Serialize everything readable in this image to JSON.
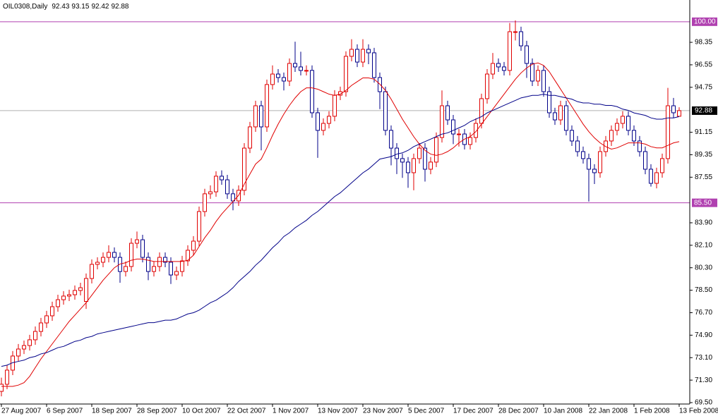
{
  "chart_data": {
    "type": "candlestick",
    "title": "OIL0308,Daily",
    "categories": [
      "27 Aug 2007",
      null,
      null,
      null,
      null,
      null,
      null,
      null,
      "6 Sep 2007",
      null,
      null,
      null,
      null,
      null,
      null,
      null,
      "18 Sep 2007",
      null,
      null,
      null,
      null,
      null,
      null,
      null,
      "28 Sep 2007",
      null,
      null,
      null,
      null,
      null,
      null,
      null,
      "10 Oct 2007",
      null,
      null,
      null,
      null,
      null,
      null,
      null,
      "22 Oct 2007",
      null,
      null,
      null,
      null,
      null,
      null,
      null,
      "1 Nov 2007",
      null,
      null,
      null,
      null,
      null,
      null,
      null,
      "13 Nov 2007",
      null,
      null,
      null,
      null,
      null,
      null,
      null,
      "23 Nov 2007",
      null,
      null,
      null,
      null,
      null,
      null,
      null,
      "5 Dec 2007",
      null,
      null,
      null,
      null,
      null,
      null,
      null,
      "17 Dec 2007",
      null,
      null,
      null,
      null,
      null,
      null,
      null,
      "28 Dec 2007",
      null,
      null,
      null,
      null,
      null,
      null,
      null,
      "10 Jan 2008",
      null,
      null,
      null,
      null,
      null,
      null,
      null,
      "22 Jan 2008",
      null,
      null,
      null,
      null,
      null,
      null,
      null,
      "1 Feb 2008",
      null,
      null,
      null,
      null,
      null,
      null,
      null,
      "13 Feb 2008"
    ],
    "open": [
      70.4,
      70.97,
      72.1,
      73.23,
      73.79,
      74.07,
      74.53,
      75.2,
      75.88,
      76.45,
      77.18,
      77.74,
      78.03,
      78.14,
      78.48,
      77.6,
      79.44,
      80.57,
      80.74,
      81.13,
      81.53,
      81.13,
      80.0,
      80.4,
      82.26,
      82.54,
      81.13,
      80.0,
      80.4,
      81.13,
      80.74,
      79.72,
      80.0,
      80.85,
      81.7,
      82.43,
      84.8,
      86.22,
      86.38,
      87.63,
      87.34,
      86.22,
      85.65,
      86.5,
      89.88,
      91.58,
      93.27,
      91.58,
      94.97,
      95.81,
      95.53,
      95.25,
      96.66,
      96.38,
      96.1,
      96.1,
      92.71,
      91.3,
      91.86,
      92.43,
      94.12,
      94.4,
      97.23,
      97.79,
      96.77,
      97.79,
      97.51,
      95.53,
      94.4,
      91.3,
      89.88,
      89.04,
      88.76,
      87.91,
      89.04,
      89.88,
      88.19,
      88.76,
      90.73,
      93.27,
      92.14,
      91.01,
      91.01,
      90.17,
      90.73,
      91.86,
      93.84,
      95.81,
      96.66,
      96.38,
      96.1,
      99.2,
      99.2,
      98.07,
      96.66,
      95.25,
      96.1,
      94.4,
      92.71,
      92.14,
      93.27,
      91.3,
      90.45,
      89.6,
      89.04,
      88.19,
      87.91,
      89.6,
      90.45,
      91.3,
      91.86,
      92.43,
      91.3,
      90.45,
      89.6,
      88.19,
      87.06,
      87.91,
      89.04,
      93.27,
      92.43
    ],
    "high": [
      71.5,
      72.5,
      73.63,
      74.19,
      74.47,
      74.93,
      75.6,
      76.28,
      76.85,
      77.58,
      78.14,
      78.43,
      78.54,
      78.88,
      79.1,
      79.84,
      80.97,
      81.14,
      81.53,
      82.1,
      81.93,
      81.53,
      80.8,
      82.66,
      83.2,
      82.94,
      81.53,
      80.8,
      81.53,
      81.53,
      81.14,
      80.4,
      81.25,
      82.1,
      82.83,
      85.2,
      86.62,
      86.9,
      88.03,
      88.1,
      87.74,
      86.62,
      86.9,
      90.28,
      91.98,
      93.67,
      93.67,
      95.37,
      96.5,
      96.21,
      95.93,
      97.06,
      98.4,
      97.6,
      96.5,
      96.5,
      93.11,
      92.26,
      92.83,
      94.52,
      94.8,
      97.63,
      98.6,
      98.19,
      98.6,
      98.19,
      97.91,
      95.93,
      94.8,
      91.7,
      90.28,
      89.44,
      89.16,
      89.44,
      90.28,
      90.28,
      89.16,
      91.13,
      94.5,
      93.67,
      92.54,
      91.41,
      91.41,
      91.13,
      92.26,
      94.24,
      96.21,
      97.5,
      97.06,
      96.78,
      99.9,
      100.1,
      99.6,
      98.47,
      97.06,
      96.5,
      96.5,
      94.8,
      93.11,
      93.67,
      93.67,
      91.7,
      90.85,
      90.0,
      89.44,
      88.59,
      90.0,
      90.85,
      91.7,
      92.26,
      92.83,
      92.83,
      91.7,
      90.85,
      90.0,
      88.59,
      88.31,
      89.44,
      94.7,
      93.9,
      93.15
    ],
    "low": [
      70.0,
      70.57,
      71.7,
      72.83,
      73.39,
      73.67,
      74.13,
      74.8,
      75.48,
      76.05,
      76.78,
      77.34,
      77.63,
      77.74,
      78.08,
      77.0,
      79.04,
      80.17,
      80.34,
      80.73,
      80.73,
      79.1,
      79.6,
      80.0,
      81.86,
      80.73,
      79.3,
      79.6,
      80.0,
      80.34,
      79.0,
      79.32,
      79.6,
      80.45,
      81.3,
      82.03,
      84.4,
      85.82,
      85.98,
      86.94,
      85.82,
      84.9,
      85.25,
      86.1,
      89.48,
      91.18,
      89.7,
      91.18,
      94.57,
      95.13,
      94.5,
      94.85,
      95.98,
      95.7,
      95.7,
      92.31,
      89.1,
      90.9,
      91.46,
      92.03,
      93.72,
      94.0,
      96.83,
      96.37,
      96.37,
      96.6,
      95.13,
      93.0,
      90.9,
      88.5,
      87.8,
      87.5,
      86.7,
      86.5,
      88.64,
      87.2,
      87.79,
      88.36,
      90.33,
      91.74,
      90.2,
      90.0,
      89.77,
      89.77,
      90.33,
      91.46,
      93.44,
      95.41,
      95.98,
      95.7,
      95.7,
      98.5,
      97.67,
      95.5,
      94.85,
      94.85,
      94.0,
      92.31,
      91.74,
      91.74,
      90.9,
      90.05,
      89.2,
      88.64,
      85.6,
      87.0,
      87.51,
      89.2,
      90.05,
      90.9,
      91.46,
      90.9,
      90.05,
      89.2,
      87.79,
      86.8,
      86.66,
      87.51,
      88.64,
      92.31,
      92.42
    ],
    "close": [
      70.97,
      72.1,
      73.23,
      73.79,
      74.07,
      74.53,
      75.2,
      75.88,
      76.45,
      77.18,
      77.74,
      78.03,
      78.14,
      78.48,
      78.7,
      79.44,
      80.57,
      80.74,
      81.13,
      81.53,
      81.13,
      80.0,
      80.4,
      82.26,
      82.54,
      81.13,
      80.0,
      80.4,
      81.13,
      80.74,
      79.72,
      80.0,
      80.85,
      81.7,
      82.43,
      84.8,
      86.22,
      86.38,
      87.63,
      87.34,
      86.22,
      85.65,
      86.5,
      89.88,
      91.58,
      93.27,
      91.58,
      94.97,
      95.81,
      95.53,
      95.25,
      96.66,
      96.38,
      96.1,
      96.1,
      92.71,
      91.3,
      91.86,
      92.43,
      94.12,
      94.4,
      97.23,
      97.79,
      96.77,
      97.79,
      97.51,
      95.53,
      94.4,
      91.3,
      89.88,
      89.04,
      88.76,
      87.91,
      89.04,
      89.88,
      88.19,
      88.76,
      90.73,
      93.27,
      92.14,
      91.01,
      91.01,
      90.17,
      90.73,
      91.86,
      93.84,
      95.81,
      96.66,
      96.38,
      96.1,
      99.2,
      99.2,
      98.07,
      96.66,
      95.25,
      96.1,
      94.4,
      92.71,
      92.14,
      93.27,
      91.3,
      90.45,
      89.6,
      89.04,
      88.19,
      87.91,
      89.6,
      90.45,
      91.3,
      91.86,
      92.43,
      91.3,
      90.45,
      89.6,
      88.19,
      87.06,
      87.91,
      89.04,
      93.27,
      92.71,
      92.88
    ],
    "up_color": "#e00000",
    "down_color": "#000088",
    "overlays": [
      {
        "color": "#e00000",
        "values": [
          70.8,
          70.8,
          70.8,
          70.9,
          71.1,
          71.6,
          72.3,
          73.0,
          73.6,
          74.2,
          74.8,
          75.4,
          76.0,
          76.5,
          77.0,
          77.5,
          78.1,
          78.7,
          79.3,
          79.8,
          80.3,
          80.6,
          80.7,
          80.9,
          81.0,
          81.0,
          80.9,
          80.8,
          80.8,
          80.8,
          80.8,
          80.8,
          80.8,
          80.9,
          81.3,
          82.0,
          82.7,
          83.3,
          84.0,
          84.6,
          85.1,
          85.6,
          86.1,
          87.0,
          87.8,
          88.6,
          89.0,
          89.9,
          90.9,
          91.8,
          92.6,
          93.3,
          93.9,
          94.4,
          94.7,
          94.7,
          94.6,
          94.4,
          94.2,
          94.1,
          94.2,
          94.5,
          94.9,
          95.2,
          95.5,
          95.5,
          95.4,
          95.0,
          94.5,
          93.8,
          93.0,
          92.2,
          91.5,
          90.8,
          90.2,
          89.7,
          89.4,
          89.3,
          89.4,
          89.6,
          89.9,
          90.3,
          90.6,
          90.8,
          91.2,
          91.8,
          92.4,
          93.0,
          93.6,
          94.2,
          94.8,
          95.4,
          95.9,
          96.3,
          96.6,
          96.7,
          96.5,
          96.0,
          95.3,
          94.6,
          93.9,
          93.2,
          92.5,
          91.8,
          91.2,
          90.7,
          90.3,
          90.0,
          89.8,
          89.9,
          90.1,
          90.3,
          90.3,
          90.3,
          90.2,
          90.0,
          89.9,
          89.9,
          90.1,
          90.3,
          90.4
        ]
      },
      {
        "color": "#000088",
        "values": [
          72.4,
          72.5,
          72.7,
          72.8,
          72.9,
          73.1,
          73.2,
          73.4,
          73.5,
          73.7,
          73.9,
          74.0,
          74.2,
          74.4,
          74.5,
          74.7,
          74.8,
          75.0,
          75.1,
          75.2,
          75.3,
          75.4,
          75.5,
          75.6,
          75.7,
          75.8,
          75.9,
          75.9,
          76.0,
          76.1,
          76.1,
          76.2,
          76.4,
          76.6,
          76.7,
          76.9,
          77.2,
          77.5,
          77.7,
          78.0,
          78.3,
          78.7,
          79.2,
          79.6,
          80.0,
          80.5,
          80.9,
          81.4,
          81.9,
          82.3,
          82.8,
          83.1,
          83.5,
          83.8,
          84.1,
          84.5,
          84.8,
          85.2,
          85.6,
          86.0,
          86.3,
          86.7,
          87.1,
          87.5,
          87.9,
          88.2,
          88.6,
          89.0,
          89.1,
          89.2,
          89.4,
          89.5,
          89.7,
          90.0,
          90.2,
          90.4,
          90.6,
          90.8,
          91.0,
          91.1,
          91.3,
          91.5,
          91.7,
          92.0,
          92.2,
          92.4,
          92.7,
          92.9,
          93.1,
          93.3,
          93.5,
          93.7,
          93.9,
          94.0,
          94.1,
          94.1,
          94.2,
          94.1,
          94.1,
          94.0,
          93.9,
          93.8,
          93.6,
          93.5,
          93.5,
          93.4,
          93.4,
          93.3,
          93.3,
          93.2,
          93.0,
          92.9,
          92.7,
          92.6,
          92.5,
          92.3,
          92.2,
          92.2,
          92.3,
          92.3,
          92.4
        ]
      }
    ],
    "hlines": [
      {
        "value": 100,
        "label": "100.00",
        "color": "#b040b0"
      },
      {
        "value": 85.5,
        "label": "85.50",
        "color": "#b040b0"
      }
    ],
    "last_price_color": "#000000",
    "ylim": [
      69.5,
      101.74
    ],
    "yticks": [
      98.35,
      96.55,
      94.75,
      91.15,
      89.35,
      87.55,
      {
        "value": 83.9,
        "label": "83.90"
      },
      {
        "value": 82.1,
        "label": "82.10"
      },
      {
        "value": 80.3,
        "label": "80.30"
      },
      {
        "value": 78.5,
        "label": "78.50"
      },
      {
        "value": 76.7,
        "label": "76.70"
      },
      {
        "value": 74.9,
        "label": "74.90"
      },
      {
        "value": 73.1,
        "label": "73.10"
      },
      {
        "value": 71.3,
        "label": "71.30"
      },
      {
        "value": 69.5,
        "label": "69.50"
      }
    ]
  }
}
